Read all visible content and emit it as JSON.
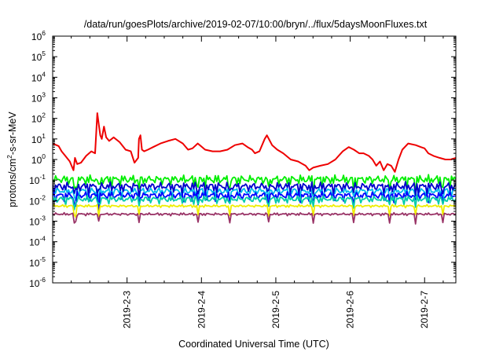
{
  "chart_data": {
    "type": "line",
    "title": "/data/run/goesPlots/archive/2019-02-07/10:00/bryn/../flux/5daysMoonFluxes.txt",
    "xlabel": "Coordinated Universal Time (UTC)",
    "ylabel_parts": [
      "protons/cm",
      "2",
      "-s-sr-MeV"
    ],
    "y_scale": "log",
    "ylim": [
      1e-06,
      1000000.0
    ],
    "y_ticks": [
      {
        "base": "10",
        "exp": "-6",
        "value": 1e-06
      },
      {
        "base": "10",
        "exp": "-5",
        "value": 1e-05
      },
      {
        "base": "10",
        "exp": "-4",
        "value": 0.0001
      },
      {
        "base": "10",
        "exp": "-3",
        "value": 0.001
      },
      {
        "base": "10",
        "exp": "-2",
        "value": 0.01
      },
      {
        "base": "10",
        "exp": "-1",
        "value": 0.1
      },
      {
        "base": "10",
        "exp": "0",
        "value": 1
      },
      {
        "base": "10",
        "exp": "1",
        "value": 10.0
      },
      {
        "base": "10",
        "exp": "2",
        "value": 100.0
      },
      {
        "base": "10",
        "exp": "3",
        "value": 1000.0
      },
      {
        "base": "10",
        "exp": "4",
        "value": 10000.0
      },
      {
        "base": "10",
        "exp": "5",
        "value": 100000.0
      },
      {
        "base": "10",
        "exp": "6",
        "value": 1000000.0
      }
    ],
    "x_ticks": [
      {
        "label": "2019-2-3",
        "day": 3
      },
      {
        "label": "2019-2-4",
        "day": 4
      },
      {
        "label": "2019-2-5",
        "day": 5
      },
      {
        "label": "2019-2-6",
        "day": 6
      },
      {
        "label": "2019-2-7",
        "day": 7
      }
    ],
    "xlim_days": [
      2.0,
      7.42
    ],
    "grid": false,
    "legend": "none",
    "series": [
      {
        "color": "#ee0000",
        "x": [
          2.0,
          2.08,
          2.12,
          2.17,
          2.23,
          2.28,
          2.3,
          2.33,
          2.38,
          2.45,
          2.52,
          2.57,
          2.6,
          2.62,
          2.64,
          2.66,
          2.69,
          2.72,
          2.76,
          2.82,
          2.9,
          2.98,
          3.05,
          3.1,
          3.15,
          3.16,
          3.18,
          3.2,
          3.23,
          3.28,
          3.35,
          3.45,
          3.55,
          3.65,
          3.75,
          3.82,
          3.88,
          3.95,
          4.05,
          4.15,
          4.25,
          4.35,
          4.45,
          4.55,
          4.62,
          4.68,
          4.72,
          4.78,
          4.85,
          4.88,
          4.92,
          4.95,
          5.02,
          5.1,
          5.2,
          5.3,
          5.4,
          5.45,
          5.5,
          5.6,
          5.7,
          5.8,
          5.9,
          5.98,
          6.05,
          6.12,
          6.18,
          6.25,
          6.3,
          6.35,
          6.4,
          6.45,
          6.5,
          6.55,
          6.6,
          6.65,
          6.7,
          6.78,
          6.88,
          6.95,
          7.0,
          7.05,
          7.12,
          7.2,
          7.28,
          7.35,
          7.42
        ],
        "y": [
          6,
          4.5,
          2.5,
          1.5,
          0.8,
          0.3,
          1.2,
          0.6,
          0.7,
          1.5,
          2.5,
          2,
          180,
          50,
          15,
          10,
          40,
          12,
          8,
          12,
          7,
          3,
          2.5,
          0.7,
          1.2,
          10,
          15,
          3,
          2.5,
          3,
          4,
          6,
          8,
          10,
          6,
          3,
          3.5,
          6,
          3,
          2.5,
          2.5,
          3,
          5,
          6,
          4,
          3,
          2,
          2.5,
          10,
          15,
          8,
          5,
          3,
          2,
          1,
          0.8,
          0.5,
          0.3,
          0.4,
          0.5,
          0.6,
          1,
          2.5,
          4,
          3,
          2,
          2,
          1.5,
          1,
          0.5,
          0.8,
          0.3,
          0.6,
          0.5,
          0.25,
          1,
          3,
          6,
          5,
          4,
          3.5,
          2,
          1.5,
          1.2,
          1,
          1,
          1.2
        ]
      },
      {
        "color": "#00ee00",
        "x": [
          2.0,
          7.42
        ],
        "y": [
          0.11,
          0.11
        ]
      },
      {
        "color": "#00bbee",
        "x": [
          2.0,
          7.42
        ],
        "y": [
          0.03,
          0.03
        ]
      },
      {
        "color": "#0000cc",
        "x": [
          2.0,
          7.42
        ],
        "y": [
          0.05,
          0.05
        ]
      },
      {
        "color": "#0000ff",
        "x": [
          2.0,
          7.42
        ],
        "y": [
          0.018,
          0.018
        ]
      },
      {
        "color": "#00ccaa",
        "x": [
          2.0,
          7.42
        ],
        "y": [
          0.012,
          0.012
        ]
      },
      {
        "color": "#eeee00",
        "x": [
          2.0,
          7.42
        ],
        "y": [
          0.0055,
          0.0055
        ]
      },
      {
        "color": "#993366",
        "x": [
          2.0,
          7.42
        ],
        "y": [
          0.0022,
          0.0022
        ]
      }
    ]
  }
}
